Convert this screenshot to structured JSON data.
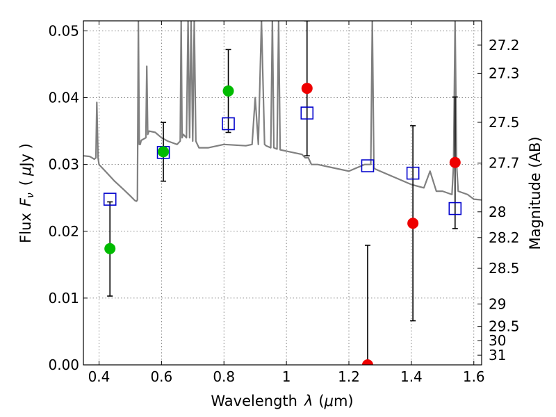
{
  "chart_data": {
    "type": "scatter",
    "xlabel_text": "Wavelength",
    "xlabel_sym": "λ",
    "xlabel_unit_open": "(",
    "xlabel_unit_sym": "μ",
    "xlabel_unit_rest": "m)",
    "ylabel_text": "Flux",
    "ylabel_sym": "F",
    "ylabel_sub": "ν",
    "ylabel_unit_open": "(",
    "ylabel_unit_sym": "μ",
    "ylabel_unit_rest": "Jy )",
    "y2label": "Magnitude (AB)",
    "xlim": [
      0.35,
      1.625
    ],
    "ylim": [
      0.0,
      0.0515
    ],
    "grid": true,
    "x_ticks": [
      {
        "value": 0.4,
        "label": "0.4"
      },
      {
        "value": 0.6,
        "label": "0.6"
      },
      {
        "value": 0.8,
        "label": "0.8"
      },
      {
        "value": 1.0,
        "label": "1"
      },
      {
        "value": 1.2,
        "label": "1.2"
      },
      {
        "value": 1.4,
        "label": "1.4"
      },
      {
        "value": 1.6,
        "label": "1.6"
      }
    ],
    "y_ticks": [
      {
        "value": 0.0,
        "label": "0.00"
      },
      {
        "value": 0.01,
        "label": "0.01"
      },
      {
        "value": 0.02,
        "label": "0.02"
      },
      {
        "value": 0.03,
        "label": "0.03"
      },
      {
        "value": 0.04,
        "label": "0.04"
      },
      {
        "value": 0.05,
        "label": "0.05"
      }
    ],
    "mag_ticks": [
      {
        "mag": 27.2,
        "label": "27.2"
      },
      {
        "mag": 27.3,
        "label": "27.3"
      },
      {
        "mag": 27.5,
        "label": "27.5"
      },
      {
        "mag": 27.7,
        "label": "27.7"
      },
      {
        "mag": 28.0,
        "label": "28"
      },
      {
        "mag": 28.2,
        "label": "28.2"
      },
      {
        "mag": 28.5,
        "label": "28.5"
      },
      {
        "mag": 29.0,
        "label": "29"
      },
      {
        "mag": 29.5,
        "label": "29.5"
      },
      {
        "mag": 30.0,
        "label": "30"
      },
      {
        "mag": 31.0,
        "label": "31"
      }
    ],
    "colors": {
      "model": "#808080",
      "model_points": "#0000cc",
      "hst": "#00bb00",
      "ir": "#ee0000",
      "errorbar": "#000000",
      "grid": "#666666"
    },
    "model_spectrum": {
      "x": [
        0.35,
        0.37,
        0.385,
        0.39,
        0.393,
        0.397,
        0.4,
        0.42,
        0.45,
        0.48,
        0.5,
        0.515,
        0.52,
        0.523,
        0.526,
        0.529,
        0.532,
        0.535,
        0.55,
        0.553,
        0.556,
        0.56,
        0.58,
        0.6,
        0.62,
        0.65,
        0.66,
        0.663,
        0.666,
        0.67,
        0.68,
        0.685,
        0.69,
        0.695,
        0.7,
        0.705,
        0.71,
        0.715,
        0.72,
        0.75,
        0.8,
        0.87,
        0.89,
        0.9,
        0.91,
        0.92,
        0.93,
        0.935,
        0.95,
        0.955,
        0.96,
        0.97,
        0.975,
        0.98,
        1.0,
        1.05,
        1.06,
        1.07,
        1.08,
        1.1,
        1.15,
        1.2,
        1.25,
        1.27,
        1.275,
        1.28,
        1.285,
        1.3,
        1.35,
        1.4,
        1.44,
        1.46,
        1.48,
        1.5,
        1.53,
        1.535,
        1.54,
        1.545,
        1.55,
        1.58,
        1.6,
        1.625
      ],
      "y": [
        0.0313,
        0.0312,
        0.0308,
        0.031,
        0.0393,
        0.031,
        0.03,
        0.029,
        0.0275,
        0.0262,
        0.0253,
        0.0246,
        0.0245,
        0.0247,
        0.0515,
        0.033,
        0.033,
        0.0336,
        0.034,
        0.0447,
        0.0345,
        0.035,
        0.0348,
        0.034,
        0.0335,
        0.033,
        0.0335,
        0.0515,
        0.034,
        0.0345,
        0.034,
        0.0515,
        0.034,
        0.0515,
        0.0335,
        0.0515,
        0.0335,
        0.033,
        0.0325,
        0.0325,
        0.033,
        0.0328,
        0.033,
        0.04,
        0.033,
        0.0515,
        0.033,
        0.0328,
        0.0325,
        0.0515,
        0.0325,
        0.0323,
        0.0515,
        0.0322,
        0.032,
        0.0315,
        0.031,
        0.031,
        0.03,
        0.03,
        0.0295,
        0.029,
        0.03,
        0.03,
        0.0515,
        0.0295,
        0.0293,
        0.029,
        0.028,
        0.027,
        0.0265,
        0.029,
        0.026,
        0.026,
        0.0255,
        0.03,
        0.0515,
        0.03,
        0.026,
        0.0255,
        0.0248,
        0.0247
      ]
    },
    "model_points": [
      {
        "x": 0.435,
        "y": 0.0248
      },
      {
        "x": 0.606,
        "y": 0.0318
      },
      {
        "x": 0.814,
        "y": 0.0361
      },
      {
        "x": 1.066,
        "y": 0.0377
      },
      {
        "x": 1.26,
        "y": 0.0298
      },
      {
        "x": 1.405,
        "y": 0.0287
      },
      {
        "x": 1.54,
        "y": 0.0234
      }
    ],
    "hst_points": [
      {
        "x": 0.435,
        "y": 0.0174,
        "ylow": 0.0103,
        "yhigh": 0.0244
      },
      {
        "x": 0.606,
        "y": 0.0319,
        "ylow": 0.0275,
        "yhigh": 0.0363
      },
      {
        "x": 0.814,
        "y": 0.041,
        "ylow": 0.0348,
        "yhigh": 0.0472
      }
    ],
    "ir_points": [
      {
        "x": 1.066,
        "y": 0.0414,
        "ylow": 0.0313,
        "yhigh": 0.0515
      },
      {
        "x": 1.26,
        "y": 0.0,
        "ylow": 0.0,
        "yhigh": 0.0179
      },
      {
        "x": 1.405,
        "y": 0.0212,
        "ylow": 0.0066,
        "yhigh": 0.0358
      },
      {
        "x": 1.54,
        "y": 0.0303,
        "ylow": 0.0204,
        "yhigh": 0.0401
      }
    ]
  }
}
